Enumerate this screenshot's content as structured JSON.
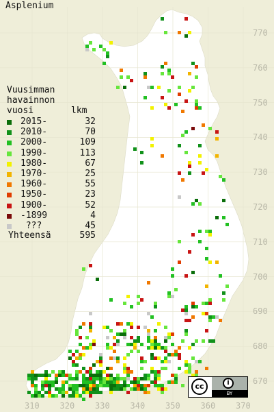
{
  "map": {
    "title": "Asplenium",
    "legend_title_lines": [
      "Vuusimman",
      "havainnon",
      "vuosi"
    ],
    "legend_count_header": "lkm",
    "legend": [
      {
        "label": "2015-",
        "count": "32",
        "color": "#0a6e0a"
      },
      {
        "label": "2010-",
        "count": "70",
        "color": "#11911a"
      },
      {
        "label": "2000-",
        "count": "109",
        "color": "#22c022"
      },
      {
        "label": "1990-",
        "count": "113",
        "color": "#66e63c"
      },
      {
        "label": "1980-",
        "count": "67",
        "color": "#f2f200"
      },
      {
        "label": "1970-",
        "count": "25",
        "color": "#f2b400"
      },
      {
        "label": "1960-",
        "count": "55",
        "color": "#f07800"
      },
      {
        "label": "1950-",
        "count": "23",
        "color": "#e03c00"
      },
      {
        "label": "1900-",
        "count": "52",
        "color": "#c81414"
      },
      {
        "label": "-1899",
        "count": "4",
        "color": "#7a0a0a"
      },
      {
        "label": " ???",
        "count": "45",
        "color": "#c8c8c8"
      }
    ],
    "total": {
      "label": "Yhteensä",
      "count": "595"
    },
    "y_labels": [
      "770",
      "760",
      "750",
      "740",
      "730",
      "720",
      "710",
      "700",
      "690",
      "680",
      "670"
    ],
    "x_labels": [
      "310",
      "320",
      "330",
      "340",
      "350",
      "360",
      "370"
    ],
    "license": {
      "cc": "cc",
      "by": "BY",
      "by_icon": "i"
    },
    "colors": {
      "background": "#efeed9",
      "land": "#ffffff",
      "grid": "#e7e6d0",
      "grid_label": "#b9b8a8"
    }
  }
}
